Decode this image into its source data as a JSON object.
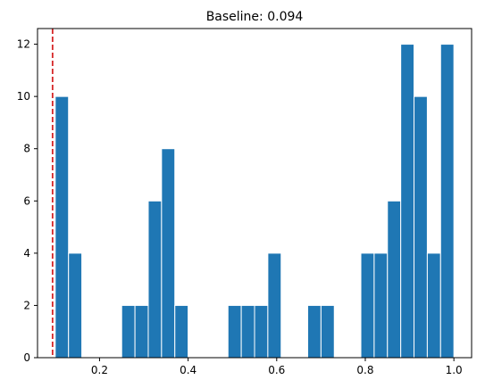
{
  "chart_data": {
    "type": "bar",
    "title": "Baseline: 0.094",
    "xlabel": "",
    "ylabel": "",
    "bins": [
      {
        "x0": 0.1,
        "x1": 0.13,
        "count": 10
      },
      {
        "x0": 0.13,
        "x1": 0.16,
        "count": 4
      },
      {
        "x0": 0.25,
        "x1": 0.28,
        "count": 2
      },
      {
        "x0": 0.28,
        "x1": 0.31,
        "count": 2
      },
      {
        "x0": 0.31,
        "x1": 0.34,
        "count": 6
      },
      {
        "x0": 0.34,
        "x1": 0.37,
        "count": 8
      },
      {
        "x0": 0.37,
        "x1": 0.4,
        "count": 2
      },
      {
        "x0": 0.49,
        "x1": 0.52,
        "count": 2
      },
      {
        "x0": 0.52,
        "x1": 0.55,
        "count": 2
      },
      {
        "x0": 0.55,
        "x1": 0.58,
        "count": 2
      },
      {
        "x0": 0.58,
        "x1": 0.61,
        "count": 4
      },
      {
        "x0": 0.67,
        "x1": 0.7,
        "count": 2
      },
      {
        "x0": 0.7,
        "x1": 0.73,
        "count": 2
      },
      {
        "x0": 0.79,
        "x1": 0.82,
        "count": 4
      },
      {
        "x0": 0.82,
        "x1": 0.85,
        "count": 4
      },
      {
        "x0": 0.85,
        "x1": 0.88,
        "count": 6
      },
      {
        "x0": 0.88,
        "x1": 0.91,
        "count": 12
      },
      {
        "x0": 0.91,
        "x1": 0.94,
        "count": 10
      },
      {
        "x0": 0.94,
        "x1": 0.97,
        "count": 4
      },
      {
        "x0": 0.97,
        "x1": 1.0,
        "count": 12
      }
    ],
    "xlim": [
      0.06,
      1.04
    ],
    "ylim": [
      0,
      12.6
    ],
    "xticks": [
      0.2,
      0.4,
      0.6,
      0.8,
      1.0
    ],
    "xtick_labels": [
      "0.2",
      "0.4",
      "0.6",
      "0.8",
      "1.0"
    ],
    "yticks": [
      0,
      2,
      4,
      6,
      8,
      10,
      12
    ],
    "ytick_labels": [
      "0",
      "2",
      "4",
      "6",
      "8",
      "10",
      "12"
    ],
    "baseline_line": {
      "x": 0.094,
      "color": "#d62728",
      "style": "dashed"
    },
    "bar_color": "#1f77b4",
    "bar_edge_color": "#ffffff",
    "grid": false,
    "legend": "none"
  }
}
